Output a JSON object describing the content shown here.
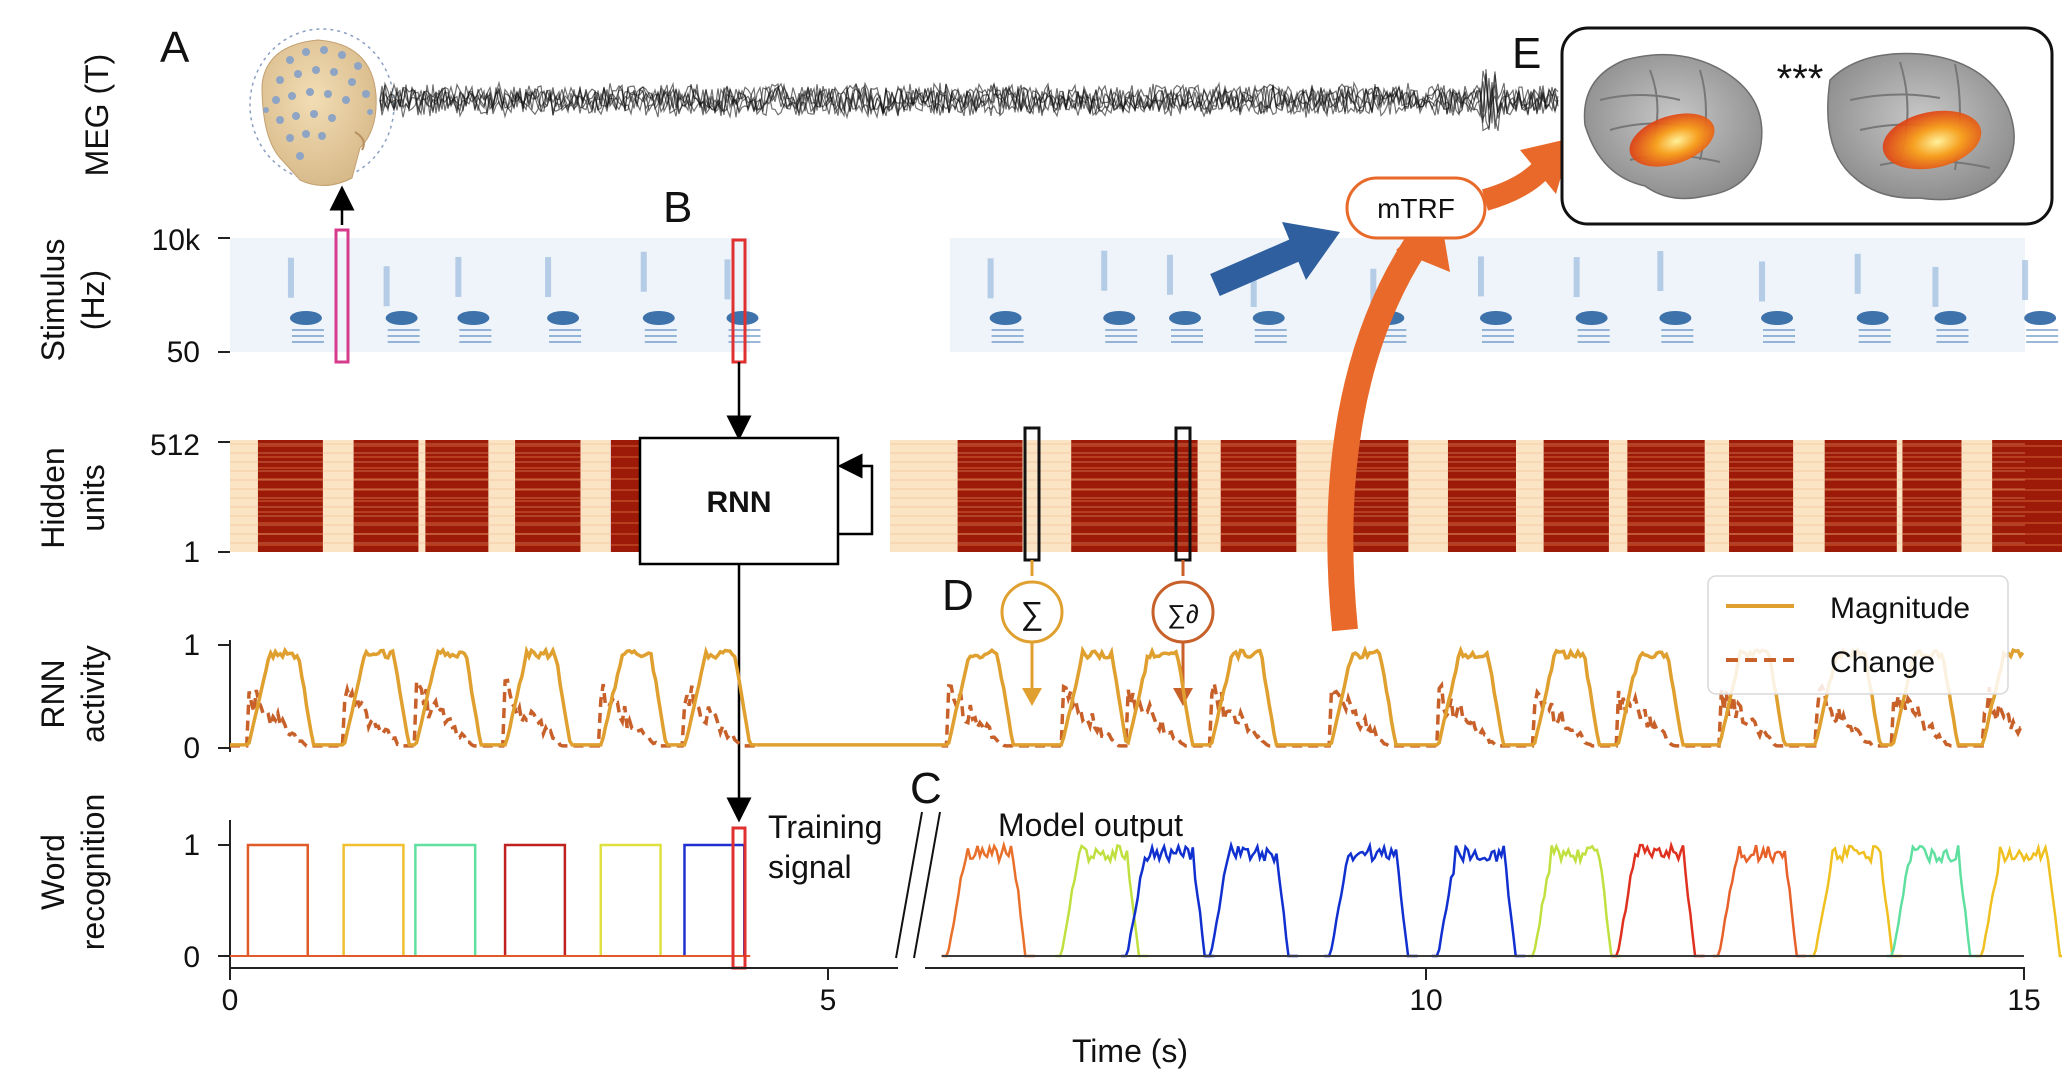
{
  "panels": {
    "a": "A",
    "b": "B",
    "c": "C",
    "d": "D",
    "e": "E"
  },
  "meg": {
    "ylabel": "MEG (T)"
  },
  "stimulus": {
    "ylabel_1": "Stimulus",
    "ylabel_2": "(Hz)",
    "tick_top": "10k",
    "tick_bottom": "50"
  },
  "hidden": {
    "ylabel_1": "Hidden",
    "ylabel_2": "units",
    "tick_top": "512",
    "tick_bottom": "1"
  },
  "rnn_box": {
    "label": "RNN"
  },
  "mtrf": {
    "label": "mTRF"
  },
  "significance": "***",
  "sum_symbols": {
    "magnitude": "∑",
    "change": "∑∂"
  },
  "rnn_activity": {
    "ylabel_1": "RNN",
    "ylabel_2": "activity",
    "tick_top": "1",
    "tick_bottom": "0",
    "legend": {
      "magnitude": "Magnitude",
      "change": "Change"
    }
  },
  "word_recognition": {
    "ylabel_1": "Word",
    "ylabel_2": "recognition",
    "tick_top": "1",
    "tick_bottom": "0",
    "training_1": "Training",
    "training_2": "signal",
    "model_output": "Model output"
  },
  "x_axis": {
    "label": "Time (s)",
    "ticks": [
      "0",
      "5",
      "10",
      "15"
    ]
  },
  "colors": {
    "magnitude": "#e0a030",
    "change": "#c8602a",
    "mtrf_arrow": "#e8692a",
    "blue_arrow": "#2f5f9e",
    "highlight_pink": "#d63c8c",
    "highlight_red": "#e03030",
    "hidden_dark": "#9e1a08",
    "hidden_light": "#fbe4c4",
    "spectrogram_bg": "#eef4fa"
  },
  "chart_data": {
    "type": "line",
    "xlabel": "Time (s)",
    "xlim": [
      0,
      15
    ],
    "word_onsets_training": [
      0.15,
      0.95,
      1.55,
      2.3,
      3.1,
      3.8
    ],
    "word_onsets_model": [
      6.0,
      6.95,
      7.5,
      8.2,
      9.2,
      10.1,
      10.9,
      11.6,
      12.45,
      13.25,
      13.9,
      14.65
    ],
    "series": [
      {
        "name": "Magnitude",
        "peak": 0.95
      },
      {
        "name": "Change",
        "peak": 0.7
      }
    ]
  }
}
